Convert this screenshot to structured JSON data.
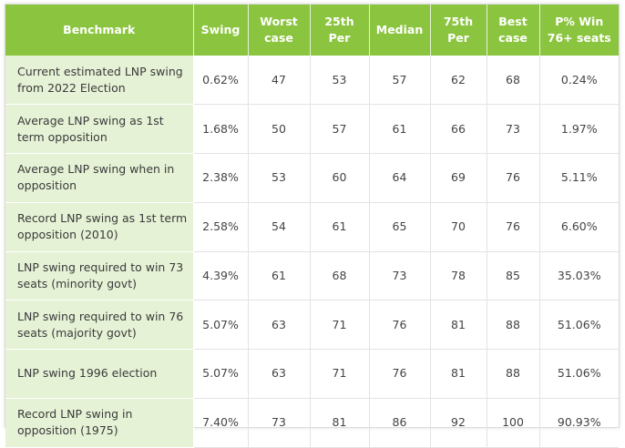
{
  "headers": [
    "Benchmark",
    "Swing",
    "Worst case",
    "25th Per",
    "Median",
    "75th Per",
    "Best case",
    "P% Win 76+ seats"
  ],
  "rows": [
    {
      "benchmark": "Current estimated LNP swing from 2022 Election",
      "swing": "0.62%",
      "worst": "47",
      "p25": "53",
      "median": "57",
      "p75": "62",
      "best": "68",
      "win": "0.24%"
    },
    {
      "benchmark": "Average LNP swing as 1st term opposition",
      "swing": "1.68%",
      "worst": "50",
      "p25": "57",
      "median": "61",
      "p75": "66",
      "best": "73",
      "win": "1.97%"
    },
    {
      "benchmark": "Average LNP swing when in opposition",
      "swing": "2.38%",
      "worst": "53",
      "p25": "60",
      "median": "64",
      "p75": "69",
      "best": "76",
      "win": "5.11%"
    },
    {
      "benchmark": "Record LNP swing as 1st term opposition (2010)",
      "swing": "2.58%",
      "worst": "54",
      "p25": "61",
      "median": "65",
      "p75": "70",
      "best": "76",
      "win": "6.60%"
    },
    {
      "benchmark": "LNP swing required to win 73 seats (minority govt)",
      "swing": "4.39%",
      "worst": "61",
      "p25": "68",
      "median": "73",
      "p75": "78",
      "best": "85",
      "win": "35.03%"
    },
    {
      "benchmark": "LNP swing required to win 76 seats (majority govt)",
      "swing": "5.07%",
      "worst": "63",
      "p25": "71",
      "median": "76",
      "p75": "81",
      "best": "88",
      "win": "51.06%"
    },
    {
      "benchmark": "LNP swing 1996 election",
      "swing": "5.07%",
      "worst": "63",
      "p25": "71",
      "median": "76",
      "p75": "81",
      "best": "88",
      "win": "51.06%"
    },
    {
      "benchmark": "Record LNP swing in opposition (1975)",
      "swing": "7.40%",
      "worst": "73",
      "p25": "81",
      "median": "86",
      "p75": "92",
      "best": "100",
      "win": "90.93%"
    }
  ],
  "colors": {
    "header_bg": "#8bc53f",
    "header_text": "#ffffff",
    "bench_bg": "#e6f2d6"
  }
}
